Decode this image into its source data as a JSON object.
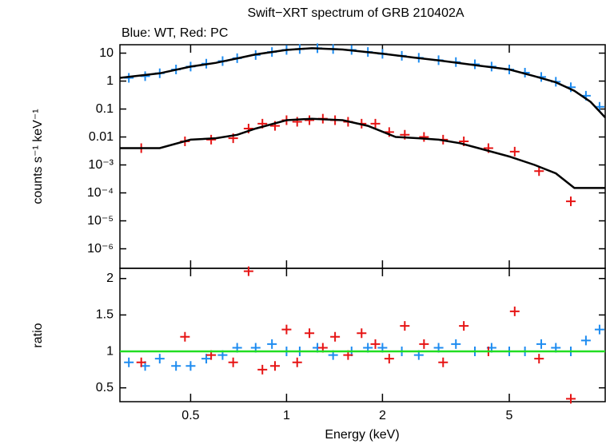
{
  "chart_data": [
    {
      "type": "scatter",
      "title": "Swift−XRT spectrum of GRB 210402A",
      "subtitle": "Blue: WT, Red: PC",
      "y_label": "counts s⁻¹ keV⁻¹",
      "xscale": "log",
      "yscale": "log",
      "xlim": [
        0.3,
        10
      ],
      "ylim": [
        2e-07,
        20
      ],
      "yticks": [
        10,
        1,
        0.1,
        0.01,
        {
          "value": 0.001,
          "label": "10⁻³"
        },
        {
          "value": 0.0001,
          "label": "10⁻⁴"
        },
        {
          "value": 1e-05,
          "label": "10⁻⁵"
        },
        {
          "value": 1e-06,
          "label": "10⁻⁶"
        }
      ],
      "series": [
        {
          "color": "#1e8cf0",
          "x": [
            0.32,
            0.36,
            0.4,
            0.45,
            0.5,
            0.56,
            0.63,
            0.7,
            0.8,
            0.9,
            1.0,
            1.1,
            1.25,
            1.4,
            1.6,
            1.8,
            2.0,
            2.3,
            2.6,
            3.0,
            3.4,
            3.9,
            4.4,
            5.0,
            5.6,
            6.3,
            7.0,
            7.8,
            8.7,
            9.6
          ],
          "values": [
            1.3,
            1.5,
            1.9,
            2.6,
            3.3,
            4.2,
            5.2,
            6.6,
            8.6,
            11,
            13,
            14,
            15,
            14,
            13,
            11,
            9.5,
            8,
            6.8,
            5.6,
            4.8,
            4,
            3.3,
            2.6,
            2,
            1.4,
            0.95,
            0.6,
            0.3,
            0.12
          ]
        },
        {
          "color": "#e61414",
          "x": [
            0.35,
            0.48,
            0.58,
            0.68,
            0.76,
            0.84,
            0.92,
            1.0,
            1.08,
            1.18,
            1.3,
            1.42,
            1.56,
            1.72,
            1.9,
            2.1,
            2.35,
            2.7,
            3.1,
            3.6,
            4.3,
            5.2,
            6.2,
            7.8
          ],
          "values": [
            0.004,
            0.007,
            0.008,
            0.009,
            0.02,
            0.03,
            0.025,
            0.04,
            0.035,
            0.04,
            0.045,
            0.04,
            0.035,
            0.03,
            0.03,
            0.015,
            0.012,
            0.01,
            0.008,
            0.007,
            0.004,
            0.003,
            0.0006,
            5e-05
          ]
        },
        {
          "color": "#000000",
          "line": true,
          "x": [
            0.3,
            0.4,
            0.5,
            0.6,
            0.7,
            0.8,
            1,
            1.2,
            1.5,
            2,
            2.5,
            3,
            4,
            5,
            6,
            7,
            8,
            9,
            10
          ],
          "values": [
            1.3,
            1.9,
            3.3,
            4.5,
            6.5,
            9,
            13,
            15,
            13.5,
            9.5,
            7,
            5.5,
            3.6,
            2.6,
            1.5,
            0.9,
            0.45,
            0.18,
            0.05
          ]
        },
        {
          "color": "#000000",
          "line": true,
          "x": [
            0.3,
            0.4,
            0.5,
            0.6,
            0.7,
            0.8,
            1,
            1.2,
            1.5,
            1.8,
            2.2,
            2.6,
            3,
            3.5,
            4,
            5,
            6,
            7,
            8,
            10
          ],
          "values": [
            0.004,
            0.004,
            0.008,
            0.009,
            0.012,
            0.02,
            0.04,
            0.045,
            0.04,
            0.025,
            0.01,
            0.009,
            0.008,
            0.006,
            0.004,
            0.002,
            0.001,
            0.0005,
            0.00015,
            0.00015
          ]
        }
      ]
    },
    {
      "type": "scatter",
      "y_label": "ratio",
      "x_label": "Energy (keV)",
      "xscale": "log",
      "yscale": "linear",
      "xlim": [
        0.3,
        10
      ],
      "ylim": [
        0.31,
        2.14
      ],
      "xticks": [
        0.5,
        1,
        2,
        5
      ],
      "yticks": [
        0.5,
        1,
        1.5,
        2
      ],
      "reference_line": 1,
      "reference_color": "#22dd22",
      "series": [
        {
          "color": "#1e8cf0",
          "x": [
            0.32,
            0.36,
            0.4,
            0.45,
            0.5,
            0.56,
            0.63,
            0.7,
            0.8,
            0.9,
            1.0,
            1.1,
            1.25,
            1.4,
            1.6,
            1.8,
            2.0,
            2.3,
            2.6,
            3.0,
            3.4,
            3.9,
            4.4,
            5.0,
            5.6,
            6.3,
            7.0,
            7.8,
            8.7,
            9.6
          ],
          "values": [
            0.85,
            0.8,
            0.9,
            0.8,
            0.8,
            0.9,
            0.95,
            1.05,
            1.05,
            1.1,
            1.0,
            1.0,
            1.05,
            0.95,
            1.0,
            1.05,
            1.05,
            1.0,
            0.95,
            1.05,
            1.1,
            1.0,
            1.05,
            1.0,
            1.0,
            1.1,
            1.05,
            1.0,
            1.15,
            1.3
          ]
        },
        {
          "color": "#e61414",
          "x": [
            0.35,
            0.48,
            0.58,
            0.68,
            0.76,
            0.84,
            0.92,
            1.0,
            1.08,
            1.18,
            1.3,
            1.42,
            1.56,
            1.72,
            1.9,
            2.1,
            2.35,
            2.7,
            3.1,
            3.6,
            4.3,
            5.2,
            6.2,
            7.8
          ],
          "values": [
            0.85,
            1.2,
            0.95,
            0.85,
            2.1,
            0.75,
            0.8,
            1.3,
            0.85,
            1.25,
            1.05,
            1.2,
            0.95,
            1.25,
            1.1,
            0.9,
            1.35,
            1.1,
            0.85,
            1.35,
            1.0,
            1.55,
            0.9,
            0.35
          ]
        }
      ]
    }
  ]
}
